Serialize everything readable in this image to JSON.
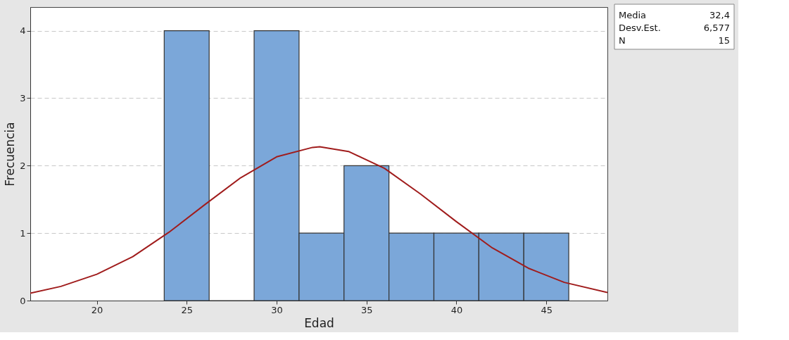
{
  "chart_data": {
    "type": "histogram",
    "xlabel": "Edad",
    "ylabel": "Frecuencia",
    "bins": [
      23.75,
      26.25,
      28.75,
      31.25,
      33.75,
      36.25,
      38.75,
      41.25,
      43.75,
      46.25
    ],
    "values": [
      4,
      0,
      4,
      1,
      2,
      1,
      1,
      1,
      1
    ],
    "color": "#7ba7d9",
    "series": [
      {
        "type": "line",
        "color": "#a01c1c",
        "x": [
          16.3,
          18,
          20,
          22,
          24,
          26,
          28,
          30,
          32,
          32.4,
          34,
          36,
          38,
          40,
          42,
          44,
          46,
          48.4
        ],
        "values": [
          0.11,
          0.21,
          0.39,
          0.65,
          1.01,
          1.42,
          1.82,
          2.13,
          2.27,
          2.28,
          2.21,
          1.96,
          1.58,
          1.17,
          0.78,
          0.48,
          0.27,
          0.12
        ]
      }
    ],
    "xlim": [
      16.3,
      48.4
    ],
    "xticks": [
      20,
      25,
      30,
      35,
      40,
      45
    ],
    "ylim": [
      0,
      4.35
    ],
    "yticks": [
      0,
      1,
      2,
      3,
      4
    ],
    "grid": "y",
    "line_style": "solid",
    "marker": "none",
    "annotations": [
      "Media 32,4",
      "Desv.Est. 6,577",
      "N 15"
    ]
  }
}
